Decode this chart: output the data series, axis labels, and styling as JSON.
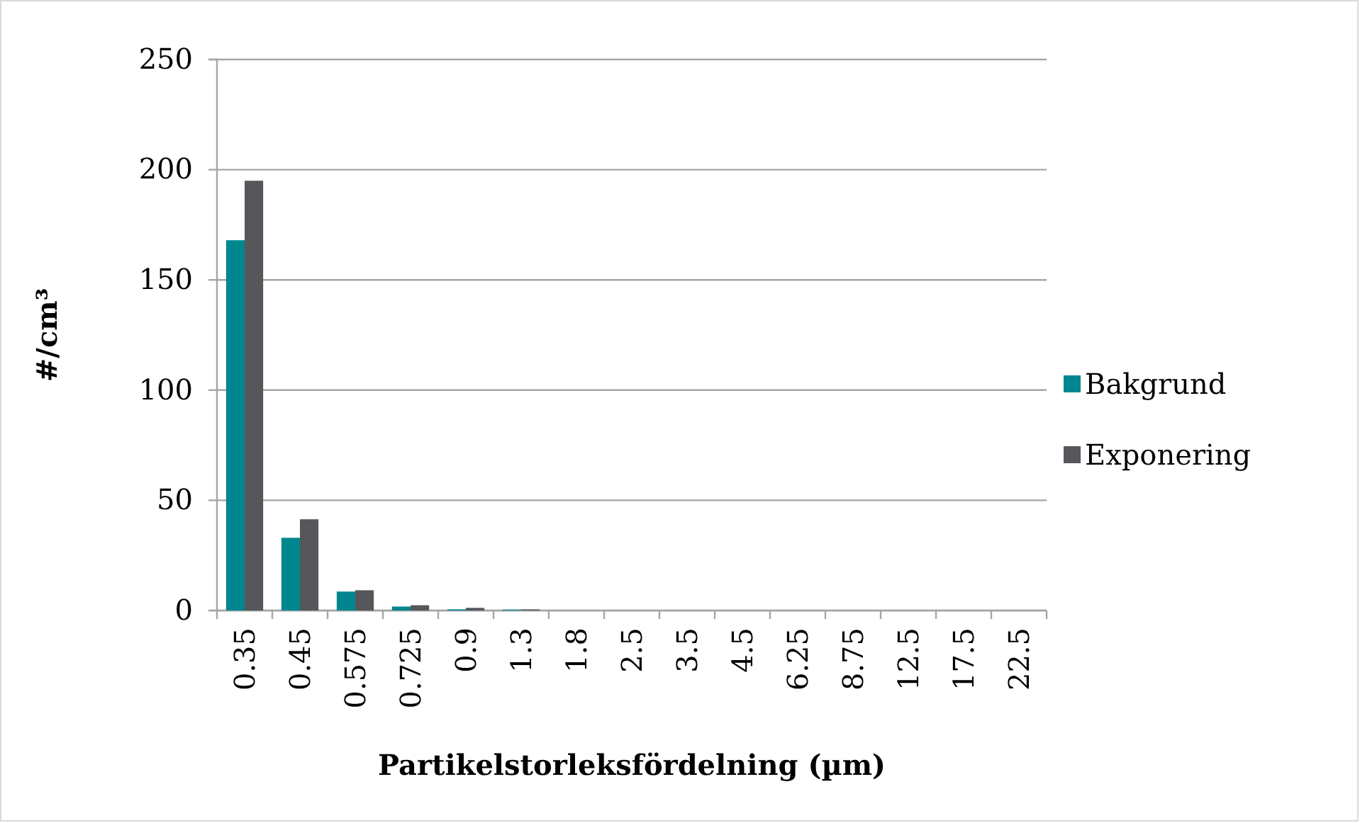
{
  "chart_data": {
    "type": "bar",
    "xlabel": "Partikelstorleksfördelning (µm)",
    "ylabel": "#/cm³",
    "categories": [
      "0.35",
      "0.45",
      "0.575",
      "0.725",
      "0.9",
      "1.3",
      "1.8",
      "2.5",
      "3.5",
      "4.5",
      "6.25",
      "8.75",
      "12.5",
      "17.5",
      "22.5"
    ],
    "series": [
      {
        "name": "Bakgrund",
        "color": "#00868f",
        "values": [
          168,
          33,
          8.6,
          1.8,
          0.5,
          0.4,
          0,
          0,
          0,
          0,
          0,
          0,
          0,
          0,
          0
        ]
      },
      {
        "name": "Exponering",
        "color": "#55575b",
        "values": [
          195,
          41.4,
          9.2,
          2.4,
          1.2,
          0.5,
          0,
          0,
          0,
          0,
          0,
          0,
          0,
          0,
          0
        ]
      }
    ],
    "ylim": [
      0,
      250
    ],
    "yticks": [
      0,
      50,
      100,
      150,
      200,
      250
    ],
    "grid": "y",
    "legend": "right"
  }
}
